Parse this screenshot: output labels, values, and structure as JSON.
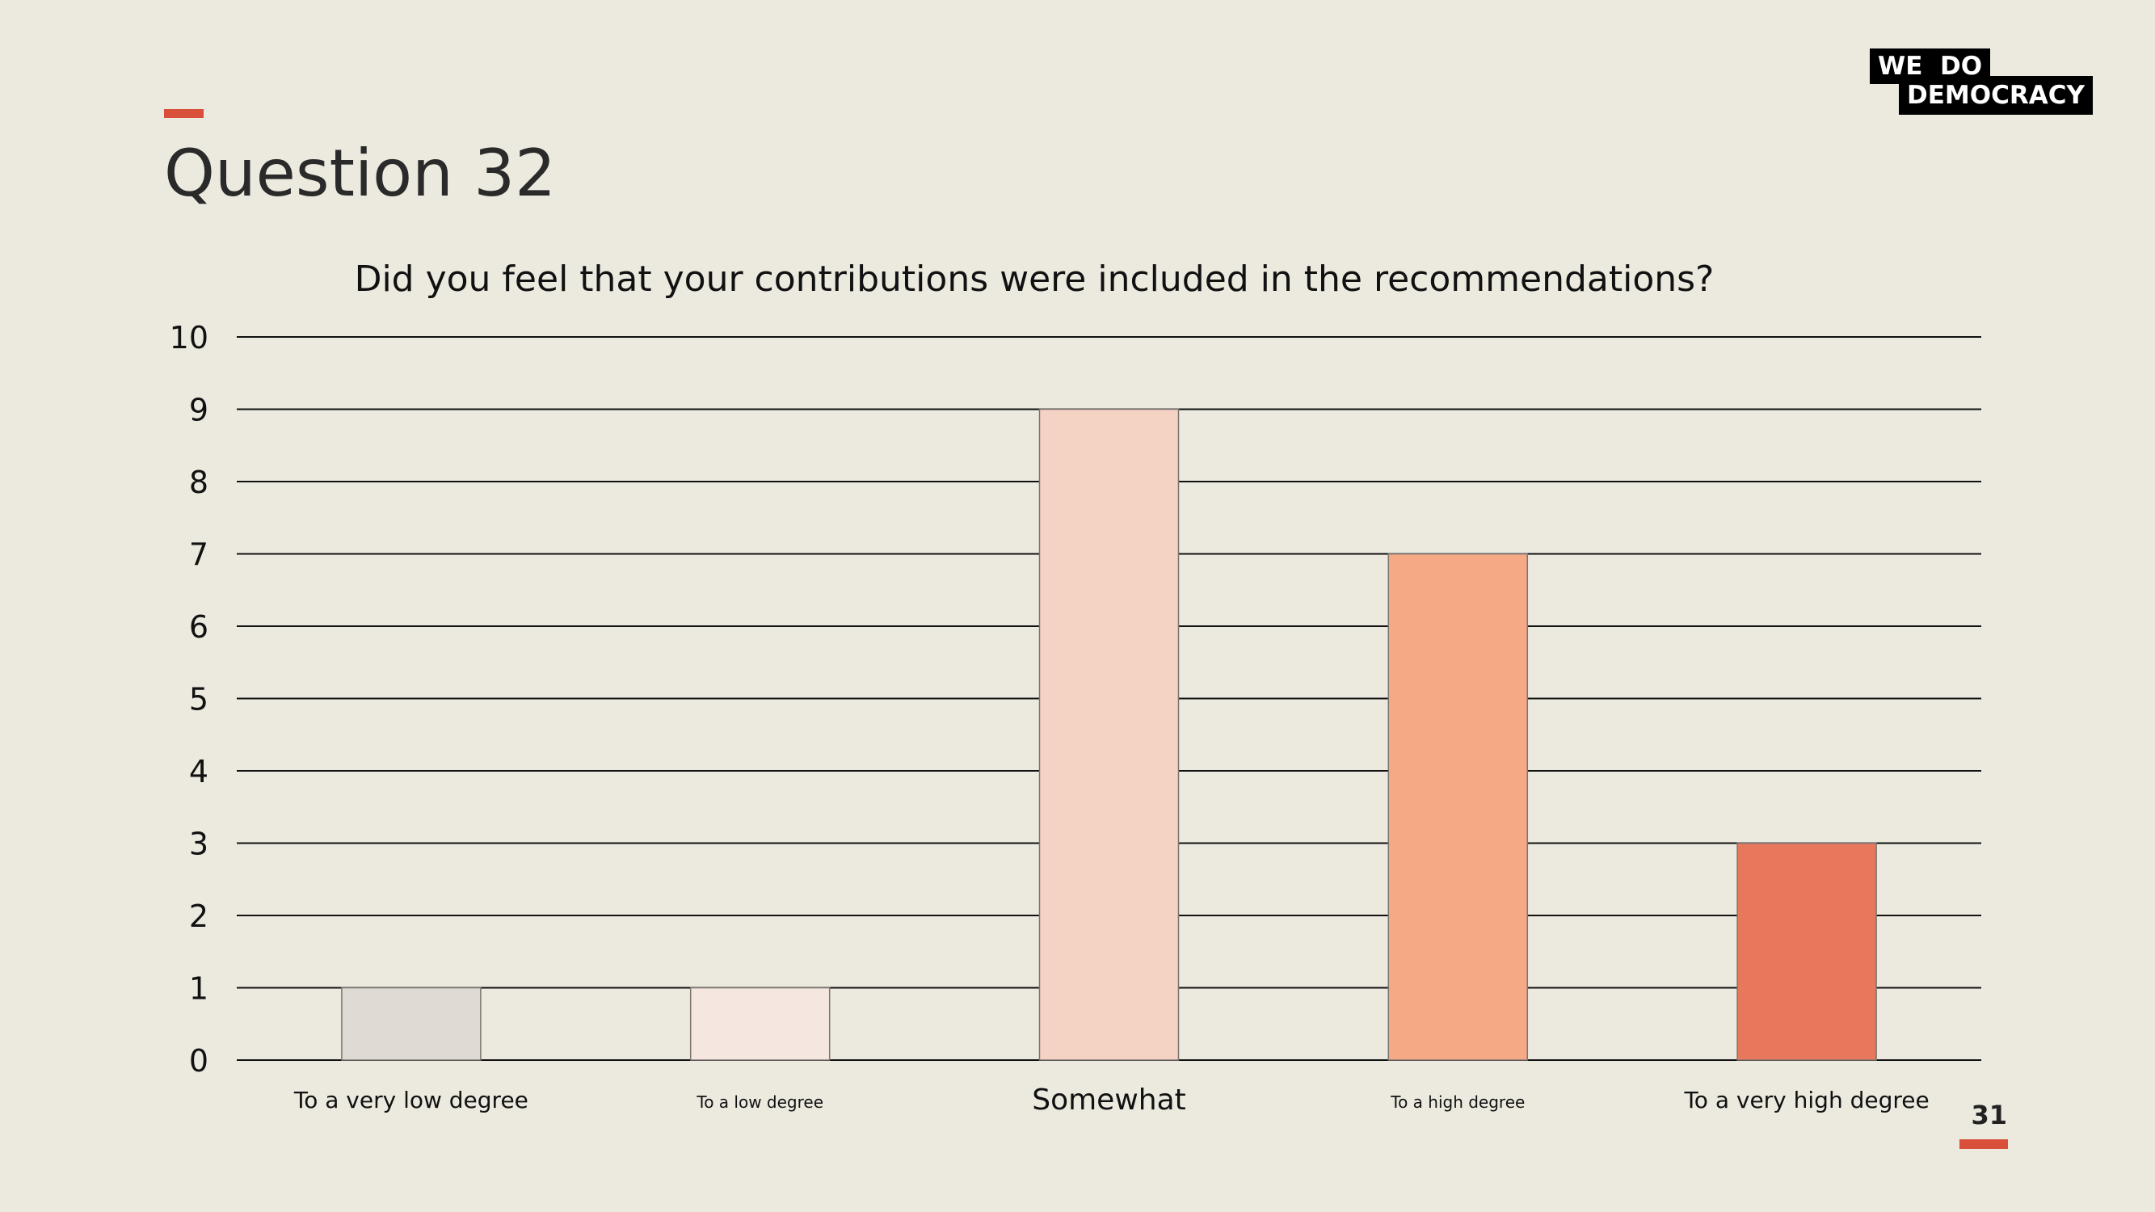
{
  "page": {
    "title": "Question 32",
    "page_number": "31",
    "accent_color": "#D9503A",
    "background_color": "#ECE9DF"
  },
  "logo": {
    "line1": "WE  DO",
    "line2": "DEMOCRACY"
  },
  "chart_data": {
    "type": "bar",
    "title": "Did you feel that your contributions were included in the recommendations?",
    "xlabel": "",
    "ylabel": "",
    "categories": [
      "To a very low degree",
      "To a low degree",
      "Somewhat",
      "To a high degree",
      "To a very high degree"
    ],
    "values": [
      1,
      1,
      9,
      7,
      3
    ],
    "colors": [
      "#E0DAD4",
      "#F5E7DF",
      "#F5D3C4",
      "#F5A985",
      "#E8785C"
    ],
    "ylim": [
      0,
      10
    ],
    "yticks": [
      0,
      1,
      2,
      3,
      4,
      5,
      6,
      7,
      8,
      9,
      10
    ],
    "grid": true,
    "legend": "none"
  }
}
